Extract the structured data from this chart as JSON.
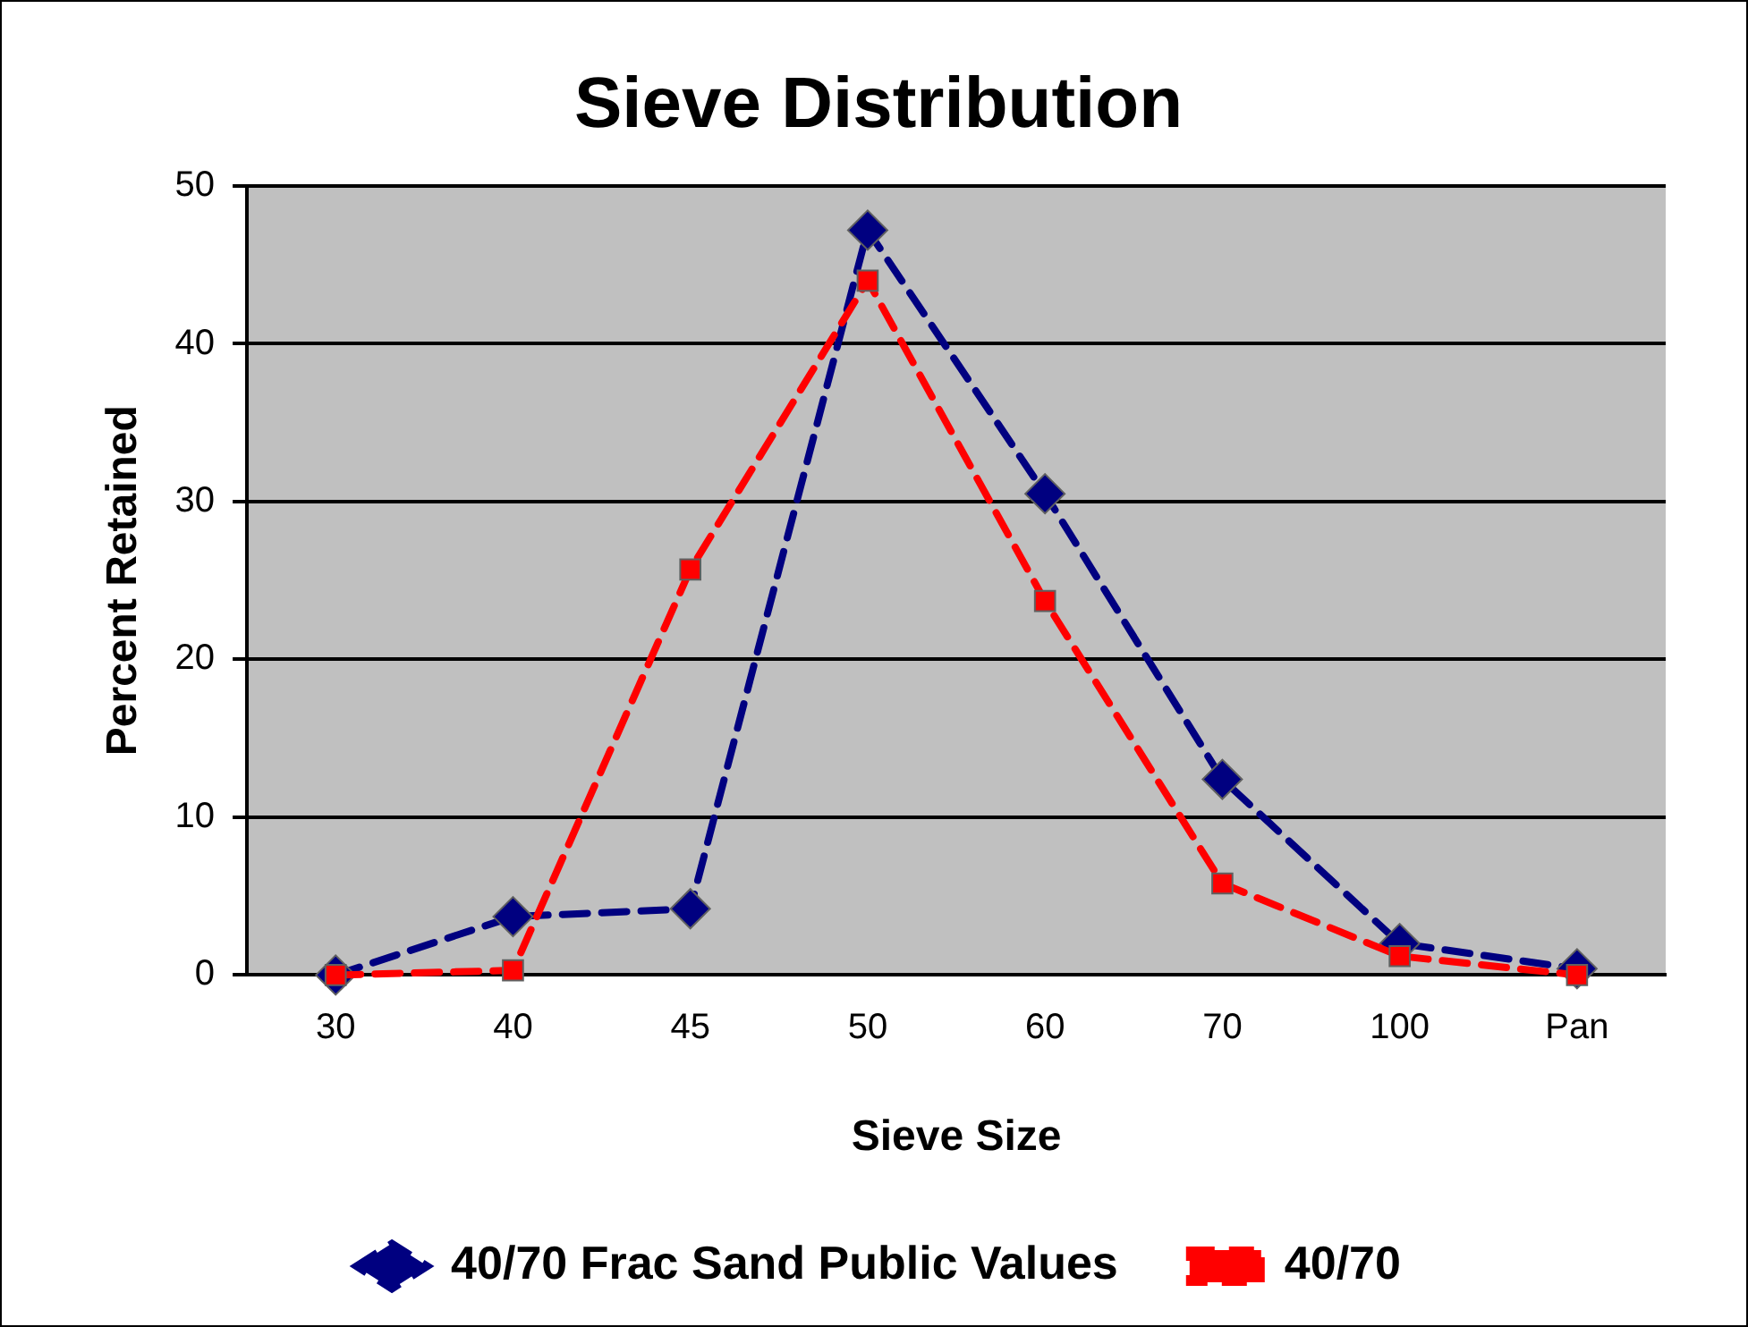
{
  "chart_data": {
    "type": "line",
    "title": "Sieve Distribution",
    "xlabel": "Sieve Size",
    "ylabel": "Percent Retained",
    "categories": [
      "30",
      "40",
      "45",
      "50",
      "60",
      "70",
      "100",
      "Pan"
    ],
    "series": [
      {
        "name": "40/70 Frac Sand Public Values",
        "color": "#000080",
        "marker": "diamond",
        "line_style": "dashed",
        "values": [
          0,
          3.7,
          4.2,
          47.2,
          30.5,
          12.4,
          2.0,
          0.4
        ]
      },
      {
        "name": "40/70",
        "color": "#ff0000",
        "marker": "square",
        "line_style": "dashed",
        "values": [
          0,
          0.3,
          25.7,
          44.0,
          23.7,
          5.8,
          1.2,
          0
        ]
      }
    ],
    "ylim": [
      0,
      50
    ],
    "yticks": [
      0,
      10,
      20,
      30,
      40,
      50
    ],
    "grid": "y",
    "legend": "bottom"
  }
}
